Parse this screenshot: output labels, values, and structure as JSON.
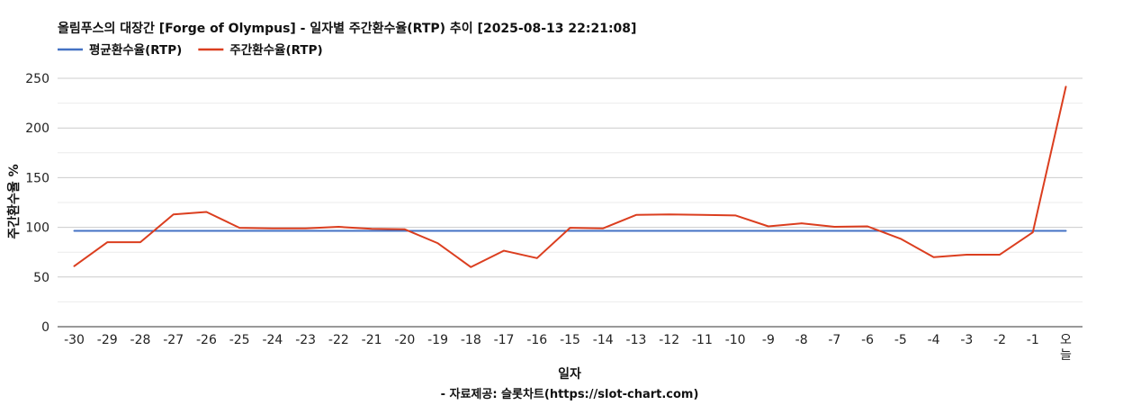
{
  "chart_data": {
    "type": "line",
    "title": "올림푸스의 대장간 [Forge of Olympus] - 일자별 주간환수율(RTP) 추이 [2025-08-13 22:21:08]",
    "xlabel": "일자",
    "ylabel": "주간환수율 %",
    "source": "- 자료제공: 슬롯차트(https://slot-chart.com)",
    "ylim": [
      0,
      250
    ],
    "yticks": [
      0,
      50,
      100,
      150,
      200,
      250
    ],
    "grid": true,
    "legend_position": "top-left",
    "categories": [
      "-30",
      "-29",
      "-28",
      "-27",
      "-26",
      "-25",
      "-24",
      "-23",
      "-22",
      "-21",
      "-20",
      "-19",
      "-18",
      "-17",
      "-16",
      "-15",
      "-14",
      "-13",
      "-12",
      "-11",
      "-10",
      "-9",
      "-8",
      "-7",
      "-6",
      "-5",
      "-4",
      "-3",
      "-2",
      "-1",
      "오늘"
    ],
    "series": [
      {
        "name": "평균환수율(RTP)",
        "color": "#4472c4",
        "values": [
          96.5,
          96.5,
          96.5,
          96.5,
          96.5,
          96.5,
          96.5,
          96.5,
          96.5,
          96.5,
          96.5,
          96.5,
          96.5,
          96.5,
          96.5,
          96.5,
          96.5,
          96.5,
          96.5,
          96.5,
          96.5,
          96.5,
          96.5,
          96.5,
          96.5,
          96.5,
          96.5,
          96.5,
          96.5,
          96.5,
          96.5
        ]
      },
      {
        "name": "주간환수율(RTP)",
        "color": "#db3e1f",
        "values": [
          61,
          85,
          85,
          113,
          115.5,
          99.5,
          99,
          99,
          100.5,
          98.5,
          98,
          84,
          60,
          76.5,
          69,
          99.5,
          99,
          112.5,
          113,
          112.5,
          112,
          101,
          104,
          100.5,
          101,
          88.5,
          70,
          72.5,
          72.5,
          95,
          241.5
        ]
      }
    ]
  }
}
